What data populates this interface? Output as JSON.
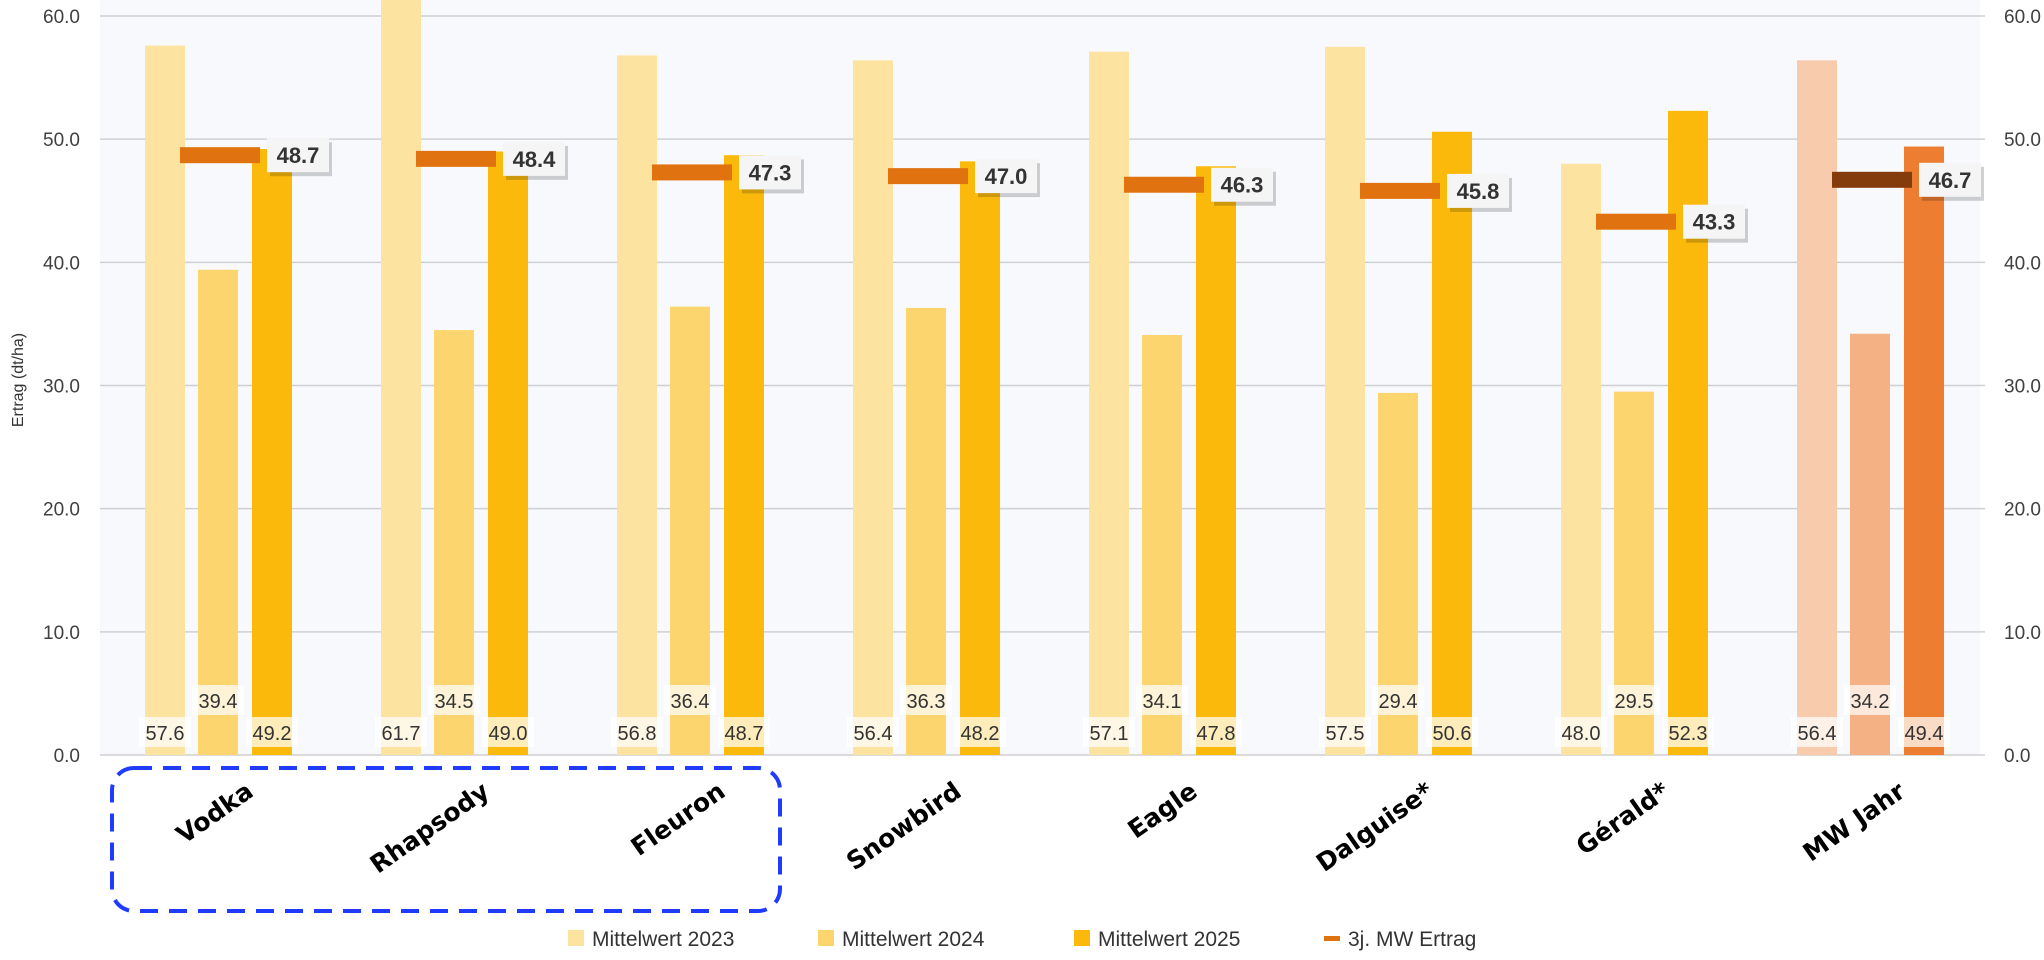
{
  "chart_data": {
    "type": "bar",
    "title": "",
    "ylabel": "Ertrag (dt/ha)",
    "ylim": [
      0,
      60
    ],
    "yticks": [
      "0.0",
      "10.0",
      "20.0",
      "30.0",
      "40.0",
      "50.0",
      "60.0"
    ],
    "secondary_yticks": [
      "0.0",
      "10.0",
      "20.0",
      "30.0",
      "40.0",
      "50.0",
      "60.0"
    ],
    "categories": [
      "Vodka",
      "Rhapsody",
      "Fleuron",
      "Snowbird",
      "Eagle",
      "Dalguise*",
      "Gérald*",
      "MW Jahr"
    ],
    "series": [
      {
        "name": "Mittelwert 2023",
        "type": "bar",
        "color": "#FDE3A0",
        "values": [
          57.6,
          61.7,
          56.8,
          56.4,
          57.1,
          57.5,
          48.0,
          56.4
        ],
        "labels": [
          "57.6",
          "61.7",
          "56.8",
          "56.4",
          "57.1",
          "57.5",
          "48.0",
          "56.4"
        ]
      },
      {
        "name": "Mittelwert 2024",
        "type": "bar",
        "color": "#FCD56E",
        "values": [
          39.4,
          34.5,
          36.4,
          36.3,
          34.1,
          29.4,
          29.5,
          34.2
        ],
        "labels": [
          "39.4",
          "34.5",
          "36.4",
          "36.3",
          "34.1",
          "29.4",
          "29.5",
          "34.2"
        ]
      },
      {
        "name": "Mittelwert 2025",
        "type": "bar",
        "color": "#FBBA0B",
        "values": [
          49.2,
          49.0,
          48.7,
          48.2,
          47.8,
          50.6,
          52.3,
          49.4
        ],
        "labels": [
          "49.2",
          "49.0",
          "48.7",
          "48.2",
          "47.8",
          "50.6",
          "52.3",
          "49.4"
        ]
      },
      {
        "name": "3j. MW Ertrag",
        "type": "marker",
        "color": "#E07310",
        "values": [
          48.7,
          48.4,
          47.3,
          47.0,
          46.3,
          45.8,
          43.3,
          46.7
        ],
        "labels": [
          "48.7",
          "48.4",
          "47.3",
          "47.0",
          "46.3",
          "45.8",
          "43.3",
          "46.7"
        ]
      }
    ],
    "highlight_colors": {
      "mw_2023": "#F8CBAD",
      "mw_2024": "#F4B183",
      "mw_2025": "#ED7D31",
      "mw_marker": "#843C0C"
    },
    "grid": true,
    "legend": "bottom",
    "annotation": "dashed blue box around Vodka, Rhapsody, Fleuron"
  }
}
